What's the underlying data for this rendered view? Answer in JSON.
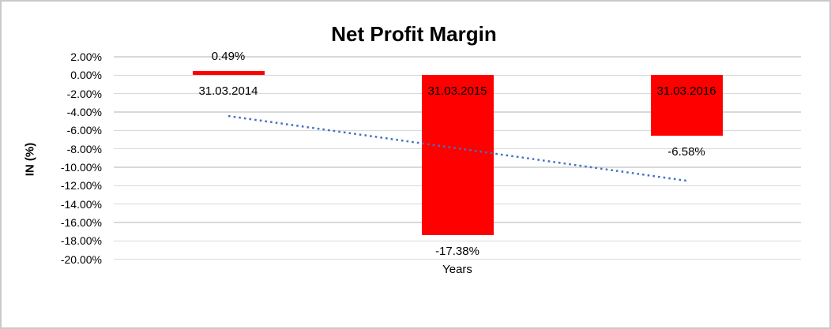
{
  "chart_data": {
    "type": "bar",
    "title": "Net Profit Margin",
    "xlabel": "Years",
    "ylabel": "IN (%)",
    "categories": [
      "31.03.2014",
      "31.03.2015",
      "31.03.2016"
    ],
    "values": [
      0.49,
      -17.38,
      -6.58
    ],
    "data_labels": [
      "0.49%",
      "-17.38%",
      "-6.58%"
    ],
    "ylim": [
      2,
      -20
    ],
    "yticks": [
      "2.00%",
      "0.00%",
      "-2.00%",
      "-4.00%",
      "-6.00%",
      "-8.00%",
      "-10.00%",
      "-12.00%",
      "-14.00%",
      "-16.00%",
      "-18.00%",
      "-20.00%"
    ],
    "grid": true,
    "legend": "none",
    "bar_color": "#ff0000",
    "gridline_color": "#d9d9d9",
    "text_color": "#000000",
    "border_color": "#c9c9c9",
    "trendline": {
      "type": "linear",
      "style": "dotted",
      "color": "#4472c4",
      "start_value": -4.43,
      "end_value": -11.46
    }
  }
}
